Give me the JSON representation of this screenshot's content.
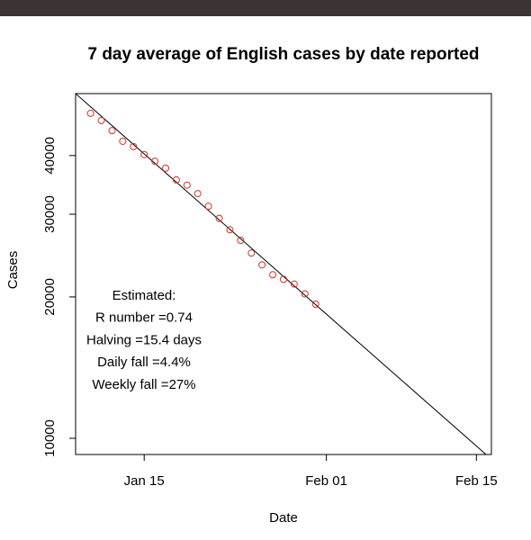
{
  "chart_data": {
    "type": "scatter",
    "title": "7 day average of English cases by date reported",
    "xlabel": "Date",
    "ylabel": "Cases",
    "log_y": true,
    "xlim": [
      8.6,
      47.4
    ],
    "ylim": [
      9236,
      54200
    ],
    "xticks": [
      {
        "value": 15,
        "label": "Jan 15"
      },
      {
        "value": 32,
        "label": "Feb 01"
      },
      {
        "value": 46,
        "label": "Feb 15"
      }
    ],
    "yticks": [
      10000,
      20000,
      30000,
      40000
    ],
    "points": {
      "color": "#cc3322",
      "x": [
        10,
        11,
        12,
        13,
        14,
        15,
        16,
        17,
        18,
        19,
        20,
        21,
        22,
        23,
        24,
        25,
        26,
        27,
        28,
        29,
        30,
        31
      ],
      "values": [
        49200,
        47500,
        45200,
        42900,
        41800,
        40200,
        38900,
        37600,
        35500,
        34600,
        33200,
        31200,
        29400,
        27800,
        26400,
        24800,
        23400,
        22300,
        21800,
        21300,
        20300,
        19300
      ]
    },
    "fit_line": {
      "color": "#000000",
      "x": [
        8.6,
        46.9
      ],
      "values": [
        54200,
        9236
      ]
    },
    "annotation": [
      "Estimated:",
      "R number =0.74",
      "Halving =15.4 days",
      "Daily fall =4.4%",
      "Weekly fall =27%"
    ]
  }
}
